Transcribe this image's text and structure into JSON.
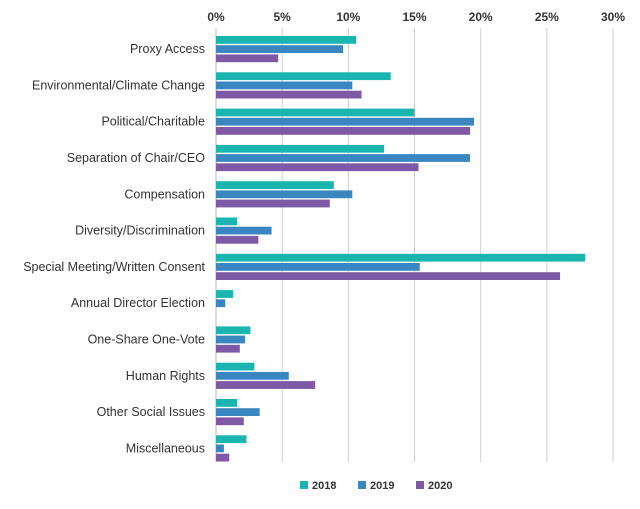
{
  "chart_data": {
    "type": "bar",
    "orientation": "horizontal",
    "title": "",
    "xlabel": "",
    "ylabel": "",
    "xlim": [
      0,
      30
    ],
    "x_tick_values": [
      0,
      5,
      10,
      15,
      20,
      25,
      30
    ],
    "x_tick_labels": [
      "0%",
      "5%",
      "10%",
      "15%",
      "20%",
      "25%",
      "30%"
    ],
    "x_axis_position": "top",
    "grid": "vertical",
    "legend_position": "bottom",
    "categories": [
      "Proxy Access",
      "Environmental/Climate Change",
      "Political/Charitable",
      "Separation of Chair/CEO",
      "Compensation",
      "Diversity/Discrimination",
      "Special Meeting/Written Consent",
      "Annual Director Election",
      "One-Share One-Vote",
      "Human Rights",
      "Other Social Issues",
      "Miscellaneous"
    ],
    "series": [
      {
        "name": "2018",
        "color": "#1bb5b0",
        "values": [
          10.6,
          13.2,
          15.0,
          12.7,
          8.9,
          1.6,
          27.9,
          1.3,
          2.6,
          2.9,
          1.6,
          2.3
        ]
      },
      {
        "name": "2019",
        "color": "#3a86c0",
        "values": [
          9.6,
          10.3,
          19.5,
          19.2,
          10.3,
          4.2,
          15.4,
          0.7,
          2.2,
          5.5,
          3.3,
          0.6
        ]
      },
      {
        "name": "2020",
        "color": "#7e5aa6",
        "values": [
          4.7,
          11.0,
          19.2,
          15.3,
          8.6,
          3.2,
          26.0,
          0.0,
          1.8,
          7.5,
          2.1,
          1.0
        ]
      }
    ]
  }
}
